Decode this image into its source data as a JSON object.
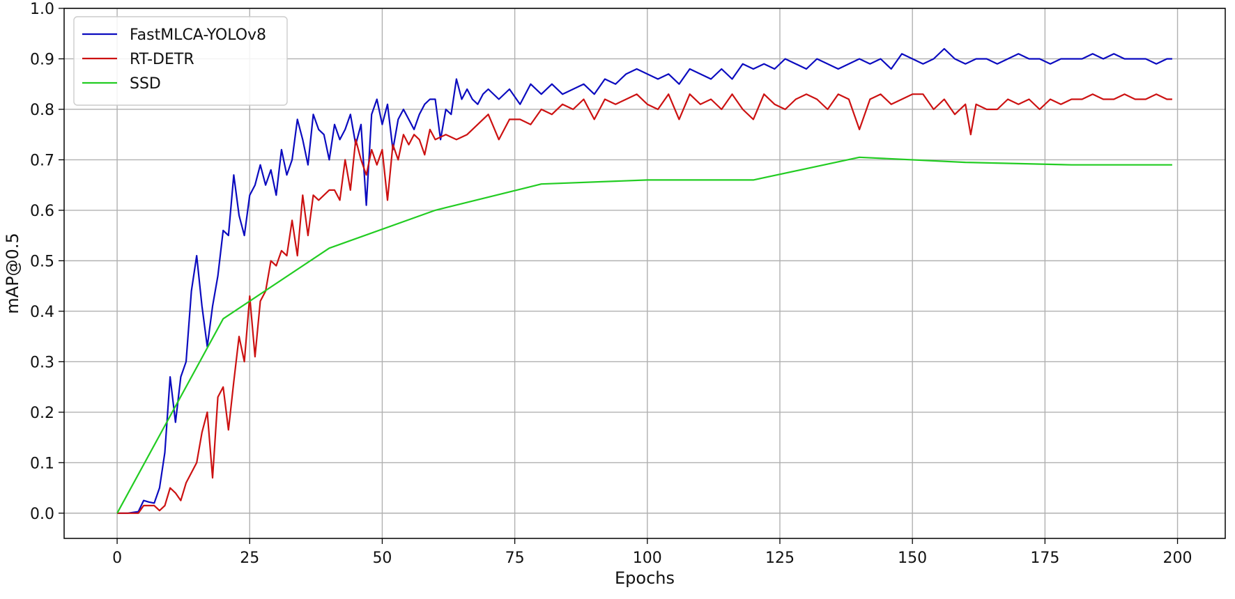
{
  "chart_data": {
    "type": "line",
    "title": "",
    "xlabel": "Epochs",
    "ylabel": "mAP@0.5",
    "xlim": [
      -10,
      209
    ],
    "ylim": [
      -0.05,
      1.0
    ],
    "xticks": [
      0,
      25,
      50,
      75,
      100,
      125,
      150,
      175,
      200
    ],
    "xtick_labels": [
      "0",
      "25",
      "50",
      "75",
      "100",
      "125",
      "150",
      "175",
      "200"
    ],
    "yticks": [
      0.0,
      0.1,
      0.2,
      0.3,
      0.4,
      0.5,
      0.6,
      0.7,
      0.8,
      0.9,
      1.0
    ],
    "ytick_labels": [
      "0.0",
      "0.1",
      "0.2",
      "0.3",
      "0.4",
      "0.5",
      "0.6",
      "0.7",
      "0.8",
      "0.9",
      "1.0"
    ],
    "grid": true,
    "legend_position": "top-left",
    "series": [
      {
        "name": "FastMLCA-YOLOv8",
        "color": "#0b0bbf",
        "x": [
          0,
          2,
          4,
          5,
          6,
          7,
          8,
          9,
          10,
          11,
          12,
          13,
          14,
          15,
          16,
          17,
          18,
          19,
          20,
          21,
          22,
          23,
          24,
          25,
          26,
          27,
          28,
          29,
          30,
          31,
          32,
          33,
          34,
          35,
          36,
          37,
          38,
          39,
          40,
          41,
          42,
          43,
          44,
          45,
          46,
          47,
          48,
          49,
          50,
          51,
          52,
          53,
          54,
          55,
          56,
          57,
          58,
          59,
          60,
          61,
          62,
          63,
          64,
          65,
          66,
          67,
          68,
          69,
          70,
          72,
          74,
          76,
          78,
          80,
          82,
          84,
          86,
          88,
          90,
          92,
          94,
          96,
          98,
          100,
          102,
          104,
          106,
          108,
          110,
          112,
          114,
          116,
          118,
          120,
          122,
          124,
          126,
          128,
          130,
          132,
          134,
          136,
          138,
          140,
          142,
          144,
          146,
          148,
          150,
          152,
          154,
          156,
          158,
          160,
          162,
          164,
          166,
          168,
          170,
          172,
          174,
          176,
          178,
          180,
          182,
          184,
          186,
          188,
          190,
          192,
          194,
          196,
          198,
          199
        ],
        "y": [
          0.0,
          0.0,
          0.003,
          0.025,
          0.022,
          0.02,
          0.05,
          0.12,
          0.27,
          0.18,
          0.27,
          0.3,
          0.44,
          0.51,
          0.41,
          0.33,
          0.41,
          0.47,
          0.56,
          0.55,
          0.67,
          0.59,
          0.55,
          0.63,
          0.65,
          0.69,
          0.65,
          0.68,
          0.63,
          0.72,
          0.67,
          0.7,
          0.78,
          0.74,
          0.69,
          0.79,
          0.76,
          0.75,
          0.7,
          0.77,
          0.74,
          0.76,
          0.79,
          0.73,
          0.77,
          0.61,
          0.79,
          0.82,
          0.77,
          0.81,
          0.72,
          0.78,
          0.8,
          0.78,
          0.76,
          0.79,
          0.81,
          0.82,
          0.82,
          0.74,
          0.8,
          0.79,
          0.86,
          0.82,
          0.84,
          0.82,
          0.81,
          0.83,
          0.84,
          0.82,
          0.84,
          0.81,
          0.85,
          0.83,
          0.85,
          0.83,
          0.84,
          0.85,
          0.83,
          0.86,
          0.85,
          0.87,
          0.88,
          0.87,
          0.86,
          0.87,
          0.85,
          0.88,
          0.87,
          0.86,
          0.88,
          0.86,
          0.89,
          0.88,
          0.89,
          0.88,
          0.9,
          0.89,
          0.88,
          0.9,
          0.89,
          0.88,
          0.89,
          0.9,
          0.89,
          0.9,
          0.88,
          0.91,
          0.9,
          0.89,
          0.9,
          0.92,
          0.9,
          0.89,
          0.9,
          0.9,
          0.89,
          0.9,
          0.91,
          0.9,
          0.9,
          0.89,
          0.9,
          0.9,
          0.9,
          0.91,
          0.9,
          0.91,
          0.9,
          0.9,
          0.9,
          0.89,
          0.9,
          0.9
        ]
      },
      {
        "name": "RT-DETR",
        "color": "#cc1111",
        "x": [
          0,
          2,
          4,
          5,
          6,
          7,
          8,
          9,
          10,
          11,
          12,
          13,
          14,
          15,
          16,
          17,
          18,
          19,
          20,
          21,
          22,
          23,
          24,
          25,
          26,
          27,
          28,
          29,
          30,
          31,
          32,
          33,
          34,
          35,
          36,
          37,
          38,
          39,
          40,
          41,
          42,
          43,
          44,
          45,
          46,
          47,
          48,
          49,
          50,
          51,
          52,
          53,
          54,
          55,
          56,
          57,
          58,
          59,
          60,
          62,
          64,
          66,
          68,
          70,
          72,
          74,
          76,
          78,
          80,
          82,
          84,
          86,
          88,
          90,
          92,
          94,
          96,
          98,
          100,
          102,
          104,
          106,
          108,
          110,
          112,
          114,
          116,
          118,
          120,
          122,
          124,
          126,
          128,
          130,
          132,
          134,
          136,
          138,
          140,
          142,
          144,
          146,
          148,
          150,
          152,
          154,
          156,
          158,
          160,
          161,
          162,
          164,
          166,
          168,
          170,
          172,
          174,
          176,
          178,
          180,
          182,
          184,
          186,
          188,
          190,
          192,
          194,
          196,
          198,
          199
        ],
        "y": [
          0.0,
          0.0,
          0.0,
          0.015,
          0.015,
          0.015,
          0.005,
          0.015,
          0.05,
          0.04,
          0.025,
          0.06,
          0.08,
          0.1,
          0.16,
          0.2,
          0.07,
          0.23,
          0.25,
          0.165,
          0.26,
          0.35,
          0.3,
          0.43,
          0.31,
          0.42,
          0.44,
          0.5,
          0.49,
          0.52,
          0.51,
          0.58,
          0.51,
          0.63,
          0.55,
          0.63,
          0.62,
          0.63,
          0.64,
          0.64,
          0.62,
          0.7,
          0.64,
          0.74,
          0.7,
          0.67,
          0.72,
          0.69,
          0.72,
          0.62,
          0.73,
          0.7,
          0.75,
          0.73,
          0.75,
          0.74,
          0.71,
          0.76,
          0.74,
          0.75,
          0.74,
          0.75,
          0.77,
          0.79,
          0.74,
          0.78,
          0.78,
          0.77,
          0.8,
          0.79,
          0.81,
          0.8,
          0.82,
          0.78,
          0.82,
          0.81,
          0.82,
          0.83,
          0.81,
          0.8,
          0.83,
          0.78,
          0.83,
          0.81,
          0.82,
          0.8,
          0.83,
          0.8,
          0.78,
          0.83,
          0.81,
          0.8,
          0.82,
          0.83,
          0.82,
          0.8,
          0.83,
          0.82,
          0.76,
          0.82,
          0.83,
          0.81,
          0.82,
          0.83,
          0.83,
          0.8,
          0.82,
          0.79,
          0.81,
          0.75,
          0.81,
          0.8,
          0.8,
          0.82,
          0.81,
          0.82,
          0.8,
          0.82,
          0.81,
          0.82,
          0.82,
          0.83,
          0.82,
          0.82,
          0.83,
          0.82,
          0.82,
          0.83,
          0.82,
          0.82
        ]
      },
      {
        "name": "SSD",
        "color": "#22cc22",
        "x": [
          0,
          20,
          40,
          60,
          80,
          100,
          120,
          140,
          160,
          180,
          199
        ],
        "y": [
          0.0,
          0.385,
          0.525,
          0.6,
          0.652,
          0.66,
          0.66,
          0.705,
          0.695,
          0.69,
          0.69
        ]
      }
    ]
  }
}
